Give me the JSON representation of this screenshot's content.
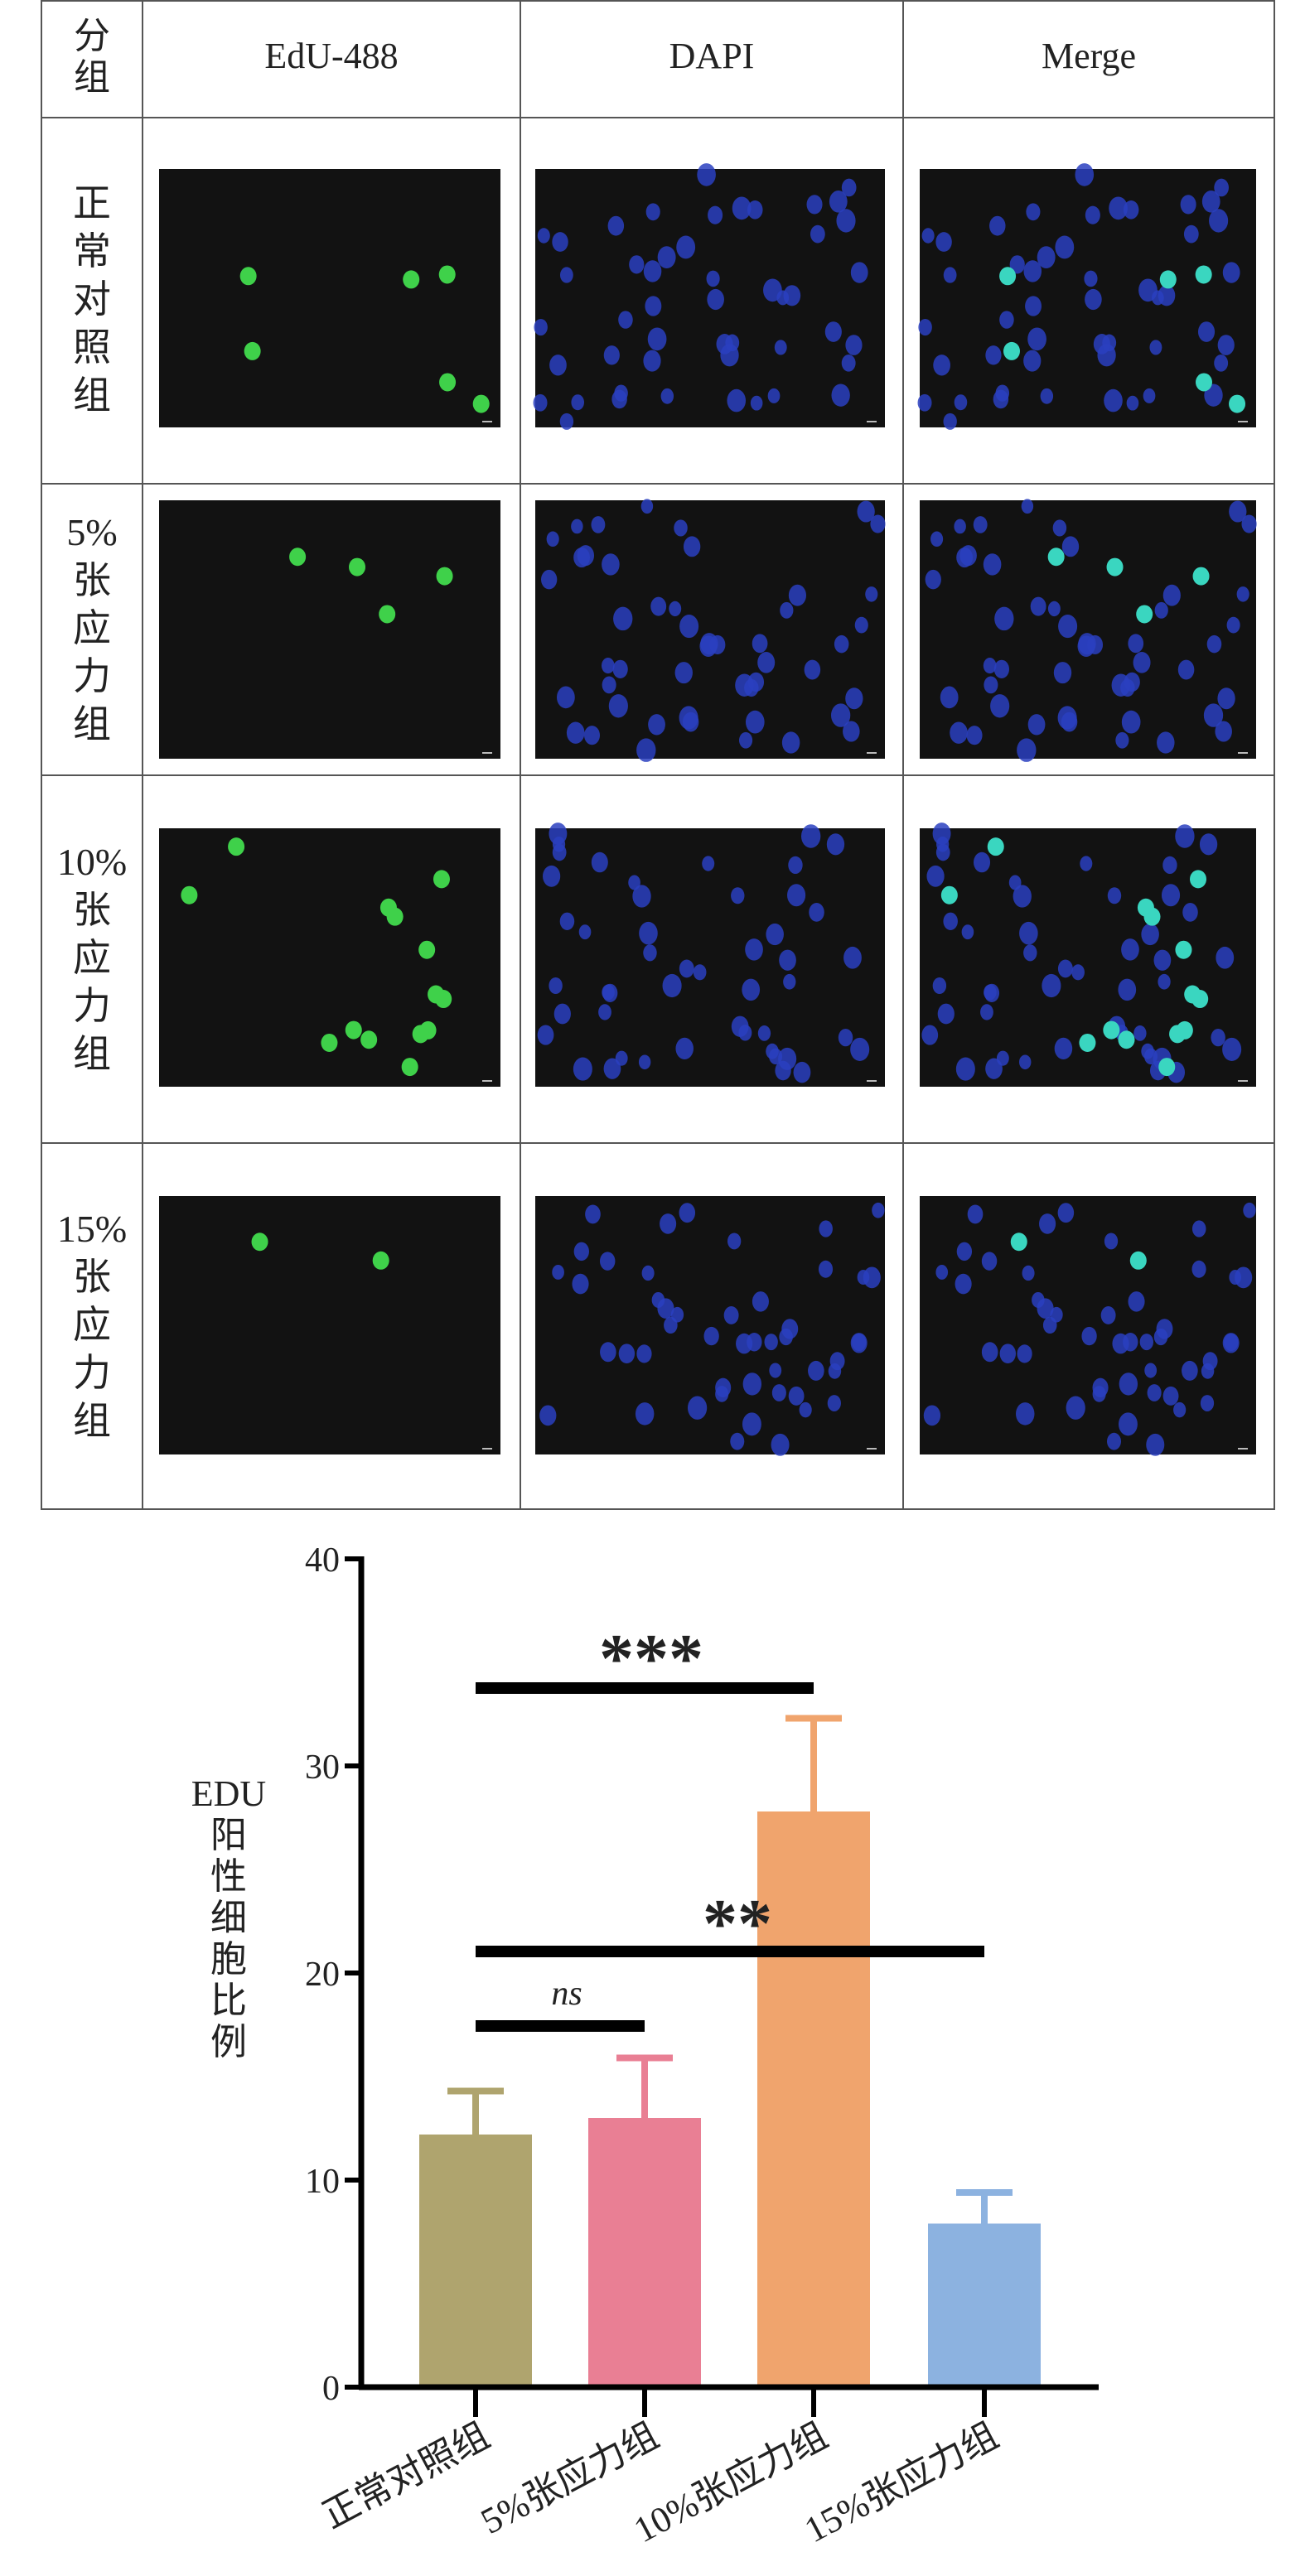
{
  "table": {
    "header": [
      "分组",
      "EdU-488",
      "DAPI",
      "Merge"
    ],
    "rows": [
      "正常对照组",
      "5%张应力组",
      "10%张应力组",
      "15%张应力组"
    ]
  },
  "chart_data": {
    "type": "bar",
    "categories": [
      "正常对照组",
      "5%张应力组",
      "10%张应力组",
      "15%张应力组"
    ],
    "values": [
      12.2,
      13.0,
      27.8,
      7.9
    ],
    "errors": [
      2.1,
      2.9,
      4.5,
      1.5
    ],
    "colors": [
      "#afa46e",
      "#e97f94",
      "#f0a46d",
      "#8cb2e0"
    ],
    "ylabel": "EDU阳性细胞比例",
    "ylim": [
      0,
      40
    ],
    "yticks": [
      0,
      10,
      20,
      30,
      40
    ],
    "annotations": [
      {
        "text": "***"
      },
      {
        "text": "**"
      },
      {
        "text": "ns"
      }
    ]
  }
}
